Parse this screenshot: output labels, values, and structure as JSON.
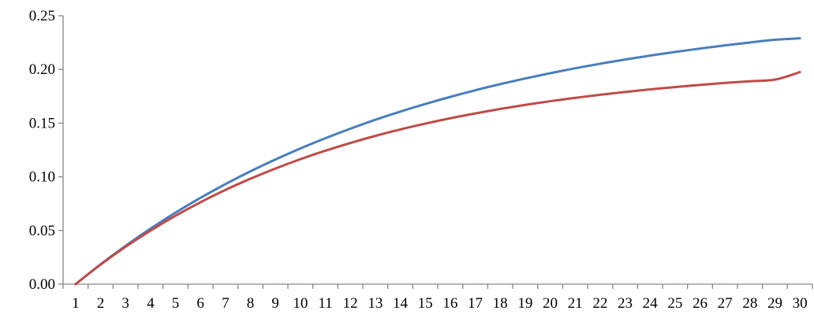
{
  "chart_data": {
    "type": "line",
    "title": "",
    "xlabel": "",
    "ylabel": "",
    "x": [
      1,
      2,
      3,
      4,
      5,
      6,
      7,
      8,
      9,
      10,
      11,
      12,
      13,
      14,
      15,
      16,
      17,
      18,
      19,
      20,
      21,
      22,
      23,
      24,
      25,
      26,
      27,
      28,
      29,
      30
    ],
    "ylim": [
      0,
      0.25
    ],
    "yticks": [
      "0.00",
      "0.05",
      "0.10",
      "0.15",
      "0.20",
      "0.25"
    ],
    "grid": false,
    "legend": "none",
    "series": [
      {
        "color": "#4a7ebb",
        "values": [
          0.0,
          0.0185,
          0.0357,
          0.0517,
          0.0666,
          0.0804,
          0.0932,
          0.1051,
          0.1161,
          0.1264,
          0.1359,
          0.1448,
          0.1531,
          0.1607,
          0.1678,
          0.1744,
          0.1806,
          0.1863,
          0.1916,
          0.1965,
          0.2011,
          0.2053,
          0.2092,
          0.2129,
          0.2163,
          0.2194,
          0.2224,
          0.2251,
          0.2276,
          0.229
        ]
      },
      {
        "color": "#be4b48",
        "values": [
          0.0,
          0.0182,
          0.0348,
          0.0499,
          0.0637,
          0.0763,
          0.0878,
          0.0982,
          0.1077,
          0.1164,
          0.1243,
          0.1315,
          0.1381,
          0.1441,
          0.1495,
          0.1545,
          0.159,
          0.1632,
          0.167,
          0.1704,
          0.1735,
          0.1764,
          0.179,
          0.1814,
          0.1836,
          0.1856,
          0.1874,
          0.189,
          0.1905,
          0.1975
        ]
      }
    ]
  }
}
